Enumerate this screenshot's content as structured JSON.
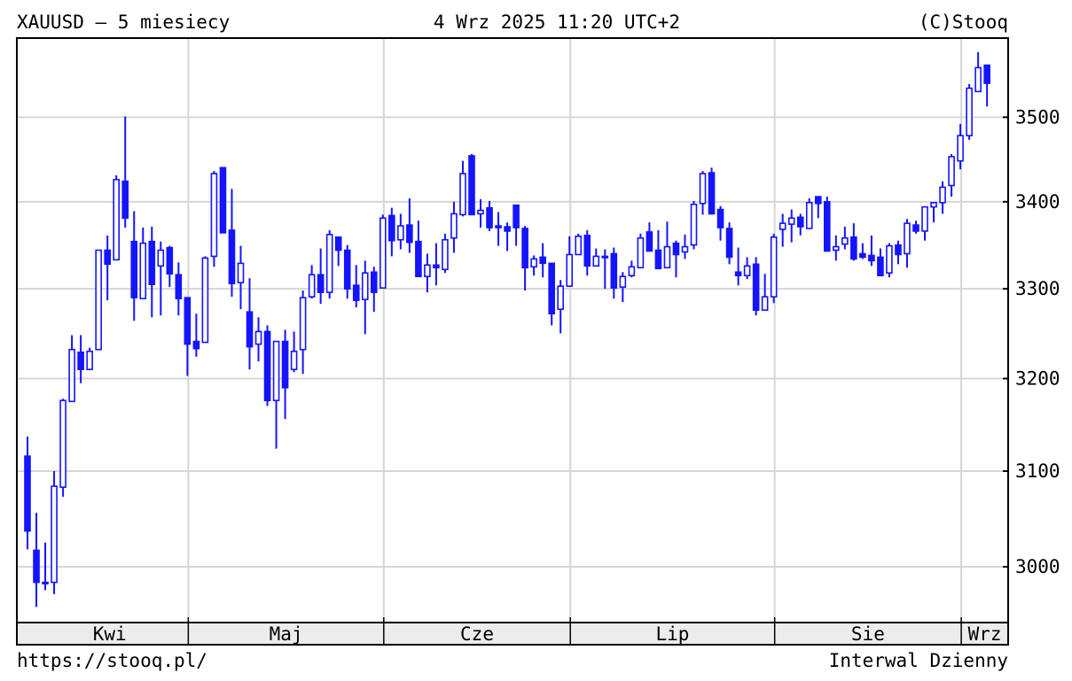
{
  "header": {
    "title": "XAUUSD – 5 miesiecy",
    "datetime": "4 Wrz 2025 11:20 UTC+2",
    "copyright": "(C)Stooq"
  },
  "footer": {
    "url": "https://stooq.pl/",
    "interval": "Interwal Dzienny"
  },
  "colors": {
    "candle": "#1414ff",
    "grid": "#d6d6d6",
    "axis_band": "#ececec"
  },
  "chart_data": {
    "type": "candlestick",
    "title": "XAUUSD – 5 miesiecy",
    "y_scale": "log",
    "ylim": [
      2945,
      3600
    ],
    "grid": true,
    "y_ticks": [
      "3000",
      "3100",
      "3200",
      "3300",
      "3400",
      "3500"
    ],
    "month_ticks": [
      {
        "label": "Kwi",
        "start_index": 0
      },
      {
        "label": "Maj",
        "start_index": 18
      },
      {
        "label": "Cze",
        "start_index": 40
      },
      {
        "label": "Lip",
        "start_index": 61
      },
      {
        "label": "Sie",
        "start_index": 84
      },
      {
        "label": "Wrz",
        "start_index": 105
      }
    ],
    "ohlc_fields": [
      "open",
      "high",
      "low",
      "close"
    ],
    "candles": [
      [
        3116,
        3137,
        3018,
        3037
      ],
      [
        3017,
        3056,
        2959,
        2984
      ],
      [
        2984,
        3025,
        2976,
        2983
      ],
      [
        2984,
        3100,
        2972,
        3084
      ],
      [
        3083,
        3178,
        3073,
        3176
      ],
      [
        3175,
        3248,
        3175,
        3232
      ],
      [
        3229,
        3248,
        3195,
        3210
      ],
      [
        3210,
        3234,
        3210,
        3230
      ],
      [
        3232,
        3344,
        3232,
        3344
      ],
      [
        3344,
        3361,
        3287,
        3328
      ],
      [
        3333,
        3431,
        3333,
        3426
      ],
      [
        3424,
        3501,
        3370,
        3381
      ],
      [
        3354,
        3389,
        3264,
        3290
      ],
      [
        3289,
        3370,
        3289,
        3352
      ],
      [
        3354,
        3371,
        3268,
        3305
      ],
      [
        3326,
        3354,
        3270,
        3344
      ],
      [
        3347,
        3349,
        3302,
        3317
      ],
      [
        3316,
        3330,
        3270,
        3289
      ],
      [
        3290,
        3290,
        3203,
        3238
      ],
      [
        3241,
        3272,
        3224,
        3233
      ],
      [
        3240,
        3337,
        3240,
        3335
      ],
      [
        3337,
        3436,
        3325,
        3433
      ],
      [
        3440,
        3440,
        3364,
        3364
      ],
      [
        3367,
        3415,
        3291,
        3306
      ],
      [
        3307,
        3349,
        3277,
        3329
      ],
      [
        3274,
        3312,
        3210,
        3235
      ],
      [
        3238,
        3268,
        3219,
        3252
      ],
      [
        3252,
        3259,
        3170,
        3176
      ],
      [
        3176,
        3241,
        3124,
        3241
      ],
      [
        3241,
        3254,
        3156,
        3190
      ],
      [
        3210,
        3252,
        3207,
        3230
      ],
      [
        3232,
        3298,
        3205,
        3290
      ],
      [
        3291,
        3327,
        3289,
        3316
      ],
      [
        3316,
        3346,
        3283,
        3296
      ],
      [
        3296,
        3367,
        3289,
        3362
      ],
      [
        3359,
        3359,
        3326,
        3344
      ],
      [
        3344,
        3350,
        3289,
        3300
      ],
      [
        3304,
        3327,
        3279,
        3287
      ],
      [
        3288,
        3332,
        3249,
        3318
      ],
      [
        3319,
        3325,
        3274,
        3296
      ],
      [
        3301,
        3385,
        3301,
        3381
      ],
      [
        3384,
        3393,
        3337,
        3355
      ],
      [
        3356,
        3386,
        3345,
        3372
      ],
      [
        3373,
        3404,
        3341,
        3353
      ],
      [
        3354,
        3378,
        3314,
        3314
      ],
      [
        3314,
        3340,
        3296,
        3327
      ],
      [
        3327,
        3352,
        3304,
        3324
      ],
      [
        3322,
        3363,
        3318,
        3356
      ],
      [
        3358,
        3400,
        3341,
        3386
      ],
      [
        3385,
        3448,
        3383,
        3433
      ],
      [
        3454,
        3456,
        3385,
        3385
      ],
      [
        3386,
        3403,
        3370,
        3390
      ],
      [
        3393,
        3401,
        3366,
        3370
      ],
      [
        3372,
        3388,
        3349,
        3370
      ],
      [
        3371,
        3376,
        3343,
        3366
      ],
      [
        3396,
        3396,
        3349,
        3370
      ],
      [
        3369,
        3372,
        3298,
        3324
      ],
      [
        3325,
        3338,
        3315,
        3334
      ],
      [
        3336,
        3352,
        3313,
        3329
      ],
      [
        3329,
        3329,
        3259,
        3272
      ],
      [
        3277,
        3310,
        3250,
        3303
      ],
      [
        3303,
        3360,
        3303,
        3339
      ],
      [
        3339,
        3363,
        3339,
        3360
      ],
      [
        3361,
        3367,
        3315,
        3326
      ],
      [
        3326,
        3346,
        3326,
        3337
      ],
      [
        3337,
        3345,
        3300,
        3336
      ],
      [
        3340,
        3347,
        3289,
        3301
      ],
      [
        3302,
        3319,
        3285,
        3314
      ],
      [
        3315,
        3332,
        3313,
        3325
      ],
      [
        3324,
        3363,
        3324,
        3358
      ],
      [
        3365,
        3376,
        3343,
        3343
      ],
      [
        3344,
        3367,
        3323,
        3323
      ],
      [
        3324,
        3377,
        3324,
        3348
      ],
      [
        3352,
        3355,
        3313,
        3339
      ],
      [
        3342,
        3362,
        3334,
        3348
      ],
      [
        3350,
        3401,
        3345,
        3397
      ],
      [
        3398,
        3436,
        3385,
        3433
      ],
      [
        3434,
        3440,
        3385,
        3386
      ],
      [
        3391,
        3395,
        3355,
        3370
      ],
      [
        3369,
        3376,
        3328,
        3336
      ],
      [
        3319,
        3347,
        3304,
        3315
      ],
      [
        3315,
        3336,
        3311,
        3326
      ],
      [
        3328,
        3336,
        3270,
        3276
      ],
      [
        3276,
        3317,
        3276,
        3291
      ],
      [
        3291,
        3363,
        3284,
        3359
      ],
      [
        3368,
        3386,
        3348,
        3375
      ],
      [
        3374,
        3391,
        3353,
        3381
      ],
      [
        3382,
        3386,
        3361,
        3371
      ],
      [
        3369,
        3404,
        3369,
        3399
      ],
      [
        3406,
        3406,
        3381,
        3398
      ],
      [
        3400,
        3406,
        3343,
        3343
      ],
      [
        3344,
        3361,
        3332,
        3348
      ],
      [
        3351,
        3371,
        3345,
        3358
      ],
      [
        3359,
        3375,
        3332,
        3334
      ],
      [
        3340,
        3352,
        3334,
        3336
      ],
      [
        3338,
        3361,
        3326,
        3332
      ],
      [
        3336,
        3346,
        3315,
        3315
      ],
      [
        3318,
        3352,
        3313,
        3349
      ],
      [
        3350,
        3355,
        3328,
        3339
      ],
      [
        3340,
        3380,
        3324,
        3375
      ],
      [
        3373,
        3378,
        3363,
        3366
      ],
      [
        3366,
        3394,
        3355,
        3394
      ],
      [
        3394,
        3399,
        3376,
        3399
      ],
      [
        3399,
        3424,
        3386,
        3417
      ],
      [
        3419,
        3456,
        3406,
        3453
      ],
      [
        3448,
        3492,
        3438,
        3478
      ],
      [
        3478,
        3540,
        3473,
        3535
      ],
      [
        3531,
        3579,
        3531,
        3560
      ],
      [
        3563,
        3563,
        3513,
        3541
      ]
    ]
  }
}
